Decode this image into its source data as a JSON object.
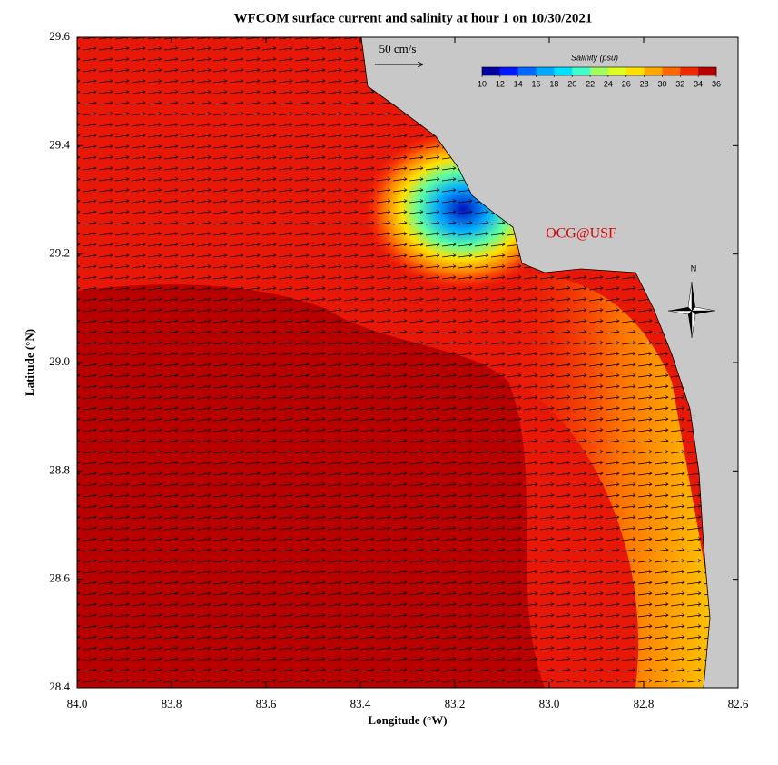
{
  "chart_data": {
    "type": "map",
    "title": "WFCOM surface current and salinity at hour 1 on 10/30/2021",
    "x_label": "Longitude (°W)",
    "y_label": "Latitude (°N)",
    "xlim": [
      84.0,
      82.6
    ],
    "xticks": [
      {
        "value": 84,
        "label": "84.0"
      },
      83.8,
      83.6,
      83.4,
      83.2,
      {
        "value": 83,
        "label": "83.0"
      },
      82.8,
      82.6
    ],
    "ylim": [
      28.4,
      29.6
    ],
    "yticks": [
      29.6,
      29.4,
      29.2,
      {
        "value": 29,
        "label": "29.0"
      },
      28.8,
      28.6,
      28.4
    ],
    "scale_label": "50 cm/s",
    "credit": "OCG@USF",
    "north_label": "N",
    "colorbar": {
      "label": "Salinity (psu)",
      "lim": [
        10,
        36
      ],
      "ticks": [
        10,
        12,
        14,
        16,
        18,
        20,
        22,
        24,
        26,
        28,
        30,
        32,
        34,
        36
      ],
      "colors": [
        "#0000a0",
        "#0018ff",
        "#0068ff",
        "#00a8ff",
        "#00e0ff",
        "#40ffc8",
        "#a0ff60",
        "#e0ff20",
        "#ffe000",
        "#ffa800",
        "#ff6800",
        "#f02800",
        "#b80000"
      ]
    }
  }
}
